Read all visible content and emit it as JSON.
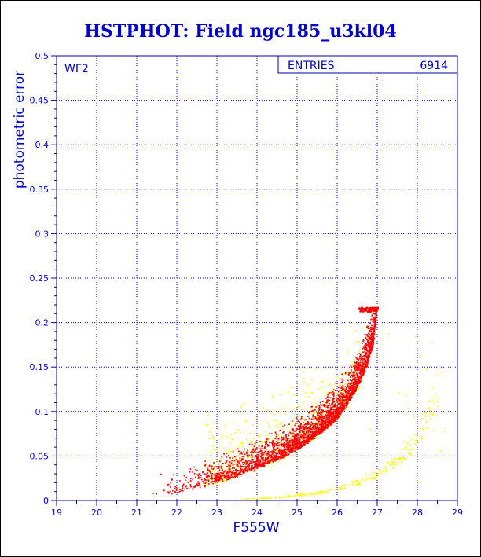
{
  "chart_data": {
    "type": "scatter",
    "title": "HSTPHOT: Field ngc185_u3kl04",
    "xlabel": "F555W",
    "ylabel": "photometric error",
    "xlim": [
      19,
      29
    ],
    "ylim": [
      0,
      0.5
    ],
    "xticks": [
      "19",
      "20",
      "21",
      "22",
      "23",
      "24",
      "25",
      "26",
      "27",
      "28",
      "29"
    ],
    "yticks": [
      "0",
      "0.05",
      "0.1",
      "0.15",
      "0.2",
      "0.25",
      "0.3",
      "0.35",
      "0.4",
      "0.45",
      "0.5"
    ],
    "grid": true,
    "panel_label": "WF2",
    "stats_box": {
      "label": "ENTRIES",
      "value": "6914"
    },
    "series": [
      {
        "color": "#ff0000",
        "description_points": [
          [
            21.5,
            0.006
          ],
          [
            22.0,
            0.01
          ],
          [
            22.5,
            0.015
          ],
          [
            23.0,
            0.021
          ],
          [
            23.5,
            0.028
          ],
          [
            24.0,
            0.036
          ],
          [
            24.5,
            0.046
          ],
          [
            25.0,
            0.058
          ],
          [
            25.5,
            0.073
          ],
          [
            26.0,
            0.093
          ],
          [
            26.25,
            0.108
          ],
          [
            26.5,
            0.127
          ],
          [
            26.75,
            0.152
          ],
          [
            26.9,
            0.175
          ],
          [
            27.0,
            0.215
          ]
        ]
      },
      {
        "color": "#ffff00",
        "description_points": [
          [
            23.5,
            0.002
          ],
          [
            24.5,
            0.004
          ],
          [
            25.5,
            0.009
          ],
          [
            26.0,
            0.014
          ],
          [
            26.5,
            0.021
          ],
          [
            27.0,
            0.031
          ],
          [
            27.5,
            0.046
          ],
          [
            27.8,
            0.06
          ],
          [
            28.0,
            0.075
          ],
          [
            28.3,
            0.1
          ],
          [
            28.7,
            0.17
          ]
        ]
      }
    ]
  }
}
